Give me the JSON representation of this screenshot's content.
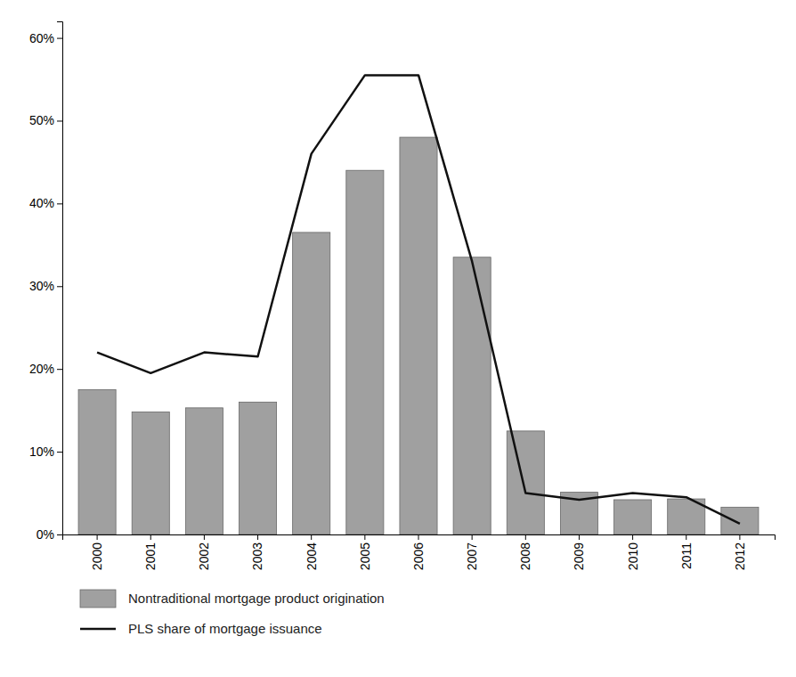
{
  "chart_data": {
    "type": "bar",
    "categories": [
      "2000",
      "2001",
      "2002",
      "2003",
      "2004",
      "2005",
      "2006",
      "2007",
      "2008",
      "2009",
      "2010",
      "2011",
      "2012"
    ],
    "series": [
      {
        "name": "Nontraditional mortgage product origination",
        "type": "bar",
        "color": "#a0a0a0",
        "values": [
          0.175,
          0.148,
          0.153,
          0.16,
          0.365,
          0.44,
          0.48,
          0.335,
          0.125,
          0.051,
          0.042,
          0.043,
          0.033
        ]
      },
      {
        "name": "PLS share of mortgage issuance",
        "type": "line",
        "color": "#111111",
        "values": [
          0.22,
          0.195,
          0.22,
          0.215,
          0.46,
          0.555,
          0.555,
          0.33,
          0.05,
          0.042,
          0.05,
          0.045,
          0.013
        ]
      }
    ],
    "ylim": [
      0,
      0.62
    ],
    "yticks": [
      {
        "value": 0.0,
        "label": "0%"
      },
      {
        "value": 0.1,
        "label": "10%"
      },
      {
        "value": 0.2,
        "label": "20%"
      },
      {
        "value": 0.3,
        "label": "30%"
      },
      {
        "value": 0.4,
        "label": "40%"
      },
      {
        "value": 0.5,
        "label": "50%"
      },
      {
        "value": 0.6,
        "label": "60%"
      }
    ],
    "grid": false,
    "legend": "bottom-left"
  }
}
